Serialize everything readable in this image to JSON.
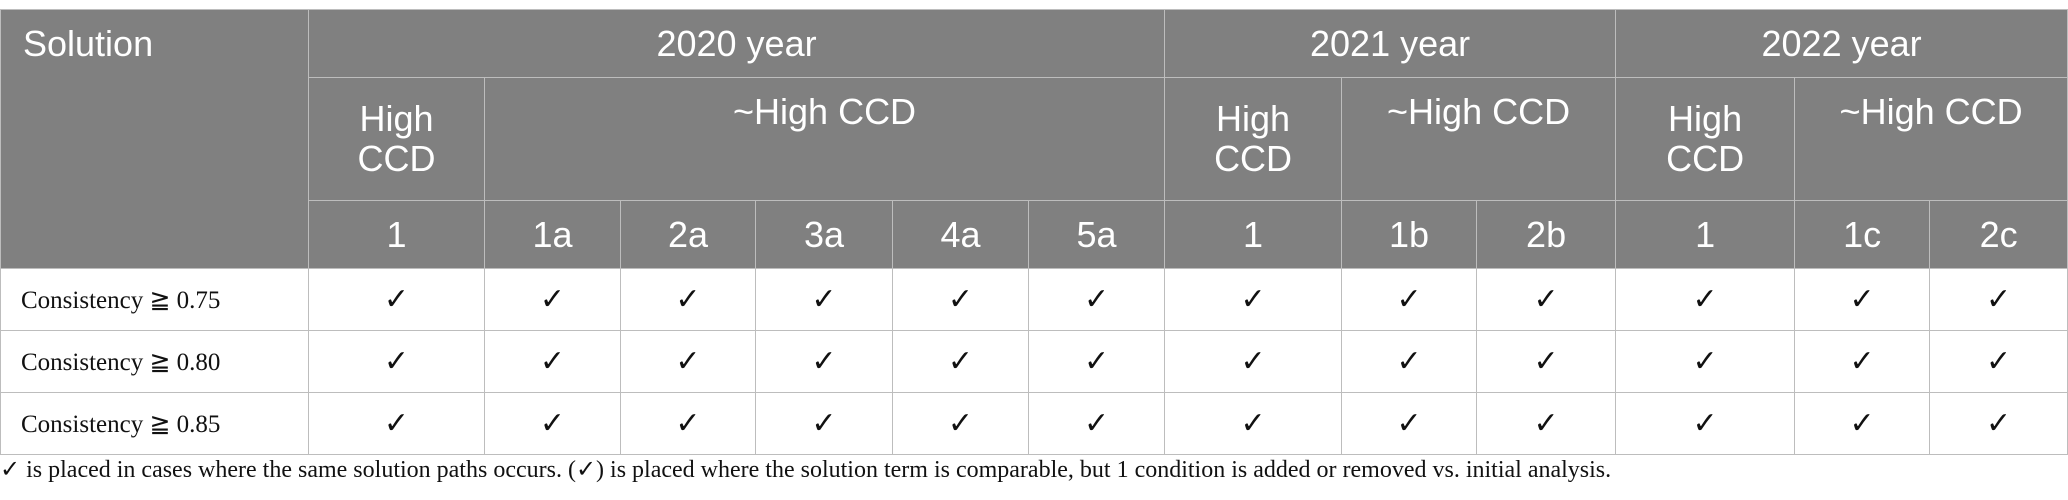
{
  "table": {
    "solution_header": "Solution",
    "years": [
      "2020 year",
      "2021 year",
      "2022 year"
    ],
    "high_ccd": "High CCD",
    "not_high_ccd": "~High CCD",
    "columns": [
      "1",
      "1a",
      "2a",
      "3a",
      "4a",
      "5a",
      "1",
      "1b",
      "2b",
      "1",
      "1c",
      "2c"
    ],
    "rows": [
      {
        "label": "Consistency ≧ 0.75",
        "cells": [
          "✓",
          "✓",
          "✓",
          "✓",
          "✓",
          "✓",
          "✓",
          "✓",
          "✓",
          "✓",
          "✓",
          "✓"
        ]
      },
      {
        "label": "Consistency ≧ 0.80",
        "cells": [
          "✓",
          "✓",
          "✓",
          "✓",
          "✓",
          "✓",
          "✓",
          "✓",
          "✓",
          "✓",
          "✓",
          "✓"
        ]
      },
      {
        "label": "Consistency ≧ 0.85",
        "cells": [
          "✓",
          "✓",
          "✓",
          "✓",
          "✓",
          "✓",
          "✓",
          "✓",
          "✓",
          "✓",
          "✓",
          "✓"
        ]
      }
    ]
  },
  "footnote": "✓ is placed in cases where the same solution paths occurs. (✓) is placed where the solution term is comparable, but 1 condition is added or removed vs. initial analysis."
}
